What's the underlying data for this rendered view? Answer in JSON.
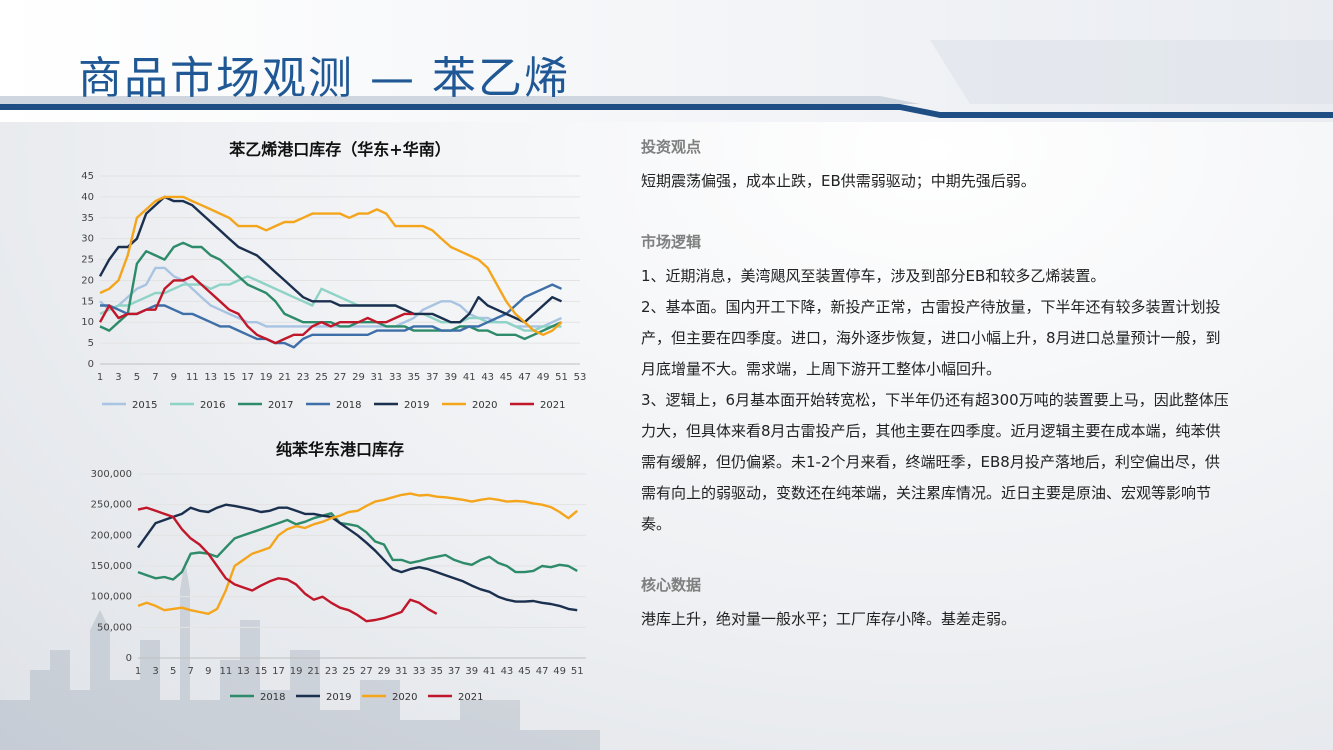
{
  "title": "商品市场观测 — 苯乙烯",
  "right": {
    "investment_heading": "投资观点",
    "investment_text": "短期震荡偏强，成本止跌，EB供需弱驱动；中期先强后弱。",
    "logic_heading": "市场逻辑",
    "logic_p1": "1、近期消息，美湾飓风至装置停车，涉及到部分EB和较多乙烯装置。",
    "logic_p2": "2、基本面。国内开工下降，新投产正常，古雷投产待放量，下半年还有较多装置计划投产，但主要在四季度。进口，海外逐步恢复，进口小幅上升，8月进口总量预计一般，到月底增量不大。需求端，上周下游开工整体小幅回升。",
    "logic_p3": "3、逻辑上，6月基本面开始转宽松，下半年仍还有超300万吨的装置要上马，因此整体压力大，但具体来看8月古雷投产后，其他主要在四季度。近月逻辑主要在成本端，纯苯供需有缓解，但仍偏紧。未1-2个月来看，终端旺季，EB8月投产落地后，利空偏出尽，供需有向上的弱驱动，变数还在纯苯端，关注累库情况。近日主要是原油、宏观等影响节奏。",
    "core_heading": "核心数据",
    "core_text": "港库上升，绝对量一般水平；工厂库存小降。基差走弱。"
  },
  "chart_data": [
    {
      "type": "line",
      "title": "苯乙烯港口库存（华东+华南）",
      "xlabel": "",
      "ylabel": "",
      "ylim": [
        0,
        45
      ],
      "yticks": [
        "0",
        "5",
        "10",
        "15",
        "20",
        "25",
        "30",
        "35",
        "40",
        "45"
      ],
      "xticks": [
        "1",
        "3",
        "5",
        "7",
        "9",
        "11",
        "13",
        "15",
        "17",
        "19",
        "21",
        "23",
        "25",
        "27",
        "29",
        "31",
        "33",
        "35",
        "37",
        "39",
        "41",
        "43",
        "45",
        "47",
        "49",
        "51",
        "53"
      ],
      "grid": true,
      "legend": "bottom",
      "series": [
        {
          "name": "2015",
          "color": "#a9c4e2",
          "values": [
            15,
            13,
            14,
            16,
            18,
            19,
            23,
            23,
            21,
            20,
            18,
            16,
            14,
            13,
            12,
            11,
            10,
            10,
            9,
            9,
            9,
            9,
            9,
            9,
            9,
            9,
            9,
            9,
            9,
            9,
            9,
            9,
            9,
            10,
            11,
            13,
            14,
            15,
            15,
            14,
            12,
            11,
            11,
            10,
            10,
            9,
            9,
            9,
            9,
            10,
            11
          ]
        },
        {
          "name": "2016",
          "color": "#8fd3c7",
          "values": [
            12,
            13,
            14,
            14,
            15,
            16,
            17,
            17,
            18,
            19,
            19,
            19,
            18,
            19,
            19,
            20,
            21,
            20,
            19,
            18,
            17,
            16,
            15,
            14,
            18,
            17,
            16,
            15,
            14,
            14,
            14,
            14,
            14,
            13,
            12,
            12,
            11,
            10,
            10,
            10,
            11,
            11,
            10,
            10,
            10,
            9,
            8,
            8,
            9,
            9,
            9
          ]
        },
        {
          "name": "2017",
          "color": "#2e8b6a",
          "values": [
            9,
            8,
            10,
            12,
            24,
            27,
            26,
            25,
            28,
            29,
            28,
            28,
            26,
            25,
            23,
            21,
            19,
            18,
            17,
            15,
            12,
            11,
            10,
            10,
            10,
            10,
            9,
            9,
            10,
            10,
            10,
            9,
            9,
            9,
            8,
            8,
            8,
            8,
            8,
            9,
            9,
            8,
            8,
            7,
            7,
            7,
            6,
            7,
            8,
            9,
            10
          ]
        },
        {
          "name": "2018",
          "color": "#3f6fa8",
          "values": [
            14,
            14,
            13,
            12,
            12,
            13,
            14,
            14,
            13,
            12,
            12,
            11,
            10,
            9,
            9,
            8,
            7,
            6,
            6,
            5,
            5,
            4,
            6,
            7,
            7,
            7,
            7,
            7,
            7,
            7,
            8,
            8,
            8,
            8,
            9,
            9,
            9,
            8,
            8,
            8,
            9,
            9,
            10,
            11,
            12,
            14,
            16,
            17,
            18,
            19,
            18
          ]
        },
        {
          "name": "2019",
          "color": "#1b2f4f",
          "values": [
            21,
            25,
            28,
            28,
            30,
            36,
            38,
            40,
            39,
            39,
            38,
            36,
            34,
            32,
            30,
            28,
            27,
            26,
            24,
            22,
            20,
            18,
            16,
            15,
            15,
            15,
            14,
            14,
            14,
            14,
            14,
            14,
            14,
            13,
            12,
            12,
            12,
            11,
            10,
            10,
            12,
            16,
            14,
            13,
            12,
            11,
            10,
            12,
            14,
            16,
            15
          ]
        },
        {
          "name": "2020",
          "color": "#f4a51c",
          "values": [
            17,
            18,
            20,
            26,
            35,
            37,
            39,
            40,
            40,
            40,
            39,
            38,
            37,
            36,
            35,
            33,
            33,
            33,
            32,
            33,
            34,
            34,
            35,
            36,
            36,
            36,
            36,
            35,
            36,
            36,
            37,
            36,
            33,
            33,
            33,
            33,
            32,
            30,
            28,
            27,
            26,
            25,
            23,
            19,
            15,
            12,
            10,
            8,
            7,
            8,
            10
          ]
        },
        {
          "name": "2021",
          "color": "#c0172b",
          "values": [
            10,
            14,
            11,
            12,
            12,
            13,
            13,
            18,
            20,
            20,
            21,
            19,
            17,
            15,
            13,
            12,
            9,
            7,
            6,
            5,
            6,
            7,
            7,
            9,
            10,
            9,
            10,
            10,
            10,
            11,
            10,
            10,
            11,
            12,
            12
          ]
        }
      ]
    },
    {
      "type": "line",
      "title": "纯苯华东港口库存",
      "xlabel": "",
      "ylabel": "",
      "ylim": [
        0,
        300000
      ],
      "yticks": [
        "0",
        "50,000",
        "100,000",
        "150,000",
        "200,000",
        "250,000",
        "300,000"
      ],
      "xticks": [
        "1",
        "3",
        "5",
        "7",
        "9",
        "11",
        "13",
        "15",
        "17",
        "19",
        "21",
        "23",
        "25",
        "27",
        "29",
        "31",
        "33",
        "35",
        "37",
        "39",
        "41",
        "43",
        "45",
        "47",
        "49",
        "51"
      ],
      "grid": true,
      "legend": "bottom",
      "series": [
        {
          "name": "2018",
          "color": "#2e8b6a",
          "values": [
            140000,
            135000,
            130000,
            132000,
            128000,
            140000,
            170000,
            172000,
            170000,
            165000,
            180000,
            195000,
            200000,
            205000,
            210000,
            215000,
            220000,
            225000,
            218000,
            222000,
            228000,
            232000,
            236000,
            220000,
            218000,
            215000,
            205000,
            190000,
            185000,
            160000,
            160000,
            155000,
            158000,
            162000,
            165000,
            168000,
            160000,
            155000,
            152000,
            160000,
            165000,
            155000,
            150000,
            140000,
            140000,
            142000,
            150000,
            148000,
            152000,
            150000,
            142000
          ]
        },
        {
          "name": "2019",
          "color": "#1b2f4f",
          "values": [
            180000,
            200000,
            220000,
            225000,
            230000,
            235000,
            245000,
            240000,
            238000,
            245000,
            250000,
            248000,
            245000,
            242000,
            238000,
            240000,
            245000,
            245000,
            240000,
            235000,
            235000,
            232000,
            230000,
            220000,
            210000,
            200000,
            188000,
            175000,
            160000,
            145000,
            140000,
            145000,
            148000,
            145000,
            140000,
            135000,
            130000,
            125000,
            118000,
            112000,
            108000,
            100000,
            95000,
            92000,
            92000,
            93000,
            90000,
            88000,
            85000,
            80000,
            78000
          ]
        },
        {
          "name": "2020",
          "color": "#f4a51c",
          "values": [
            85000,
            90000,
            85000,
            78000,
            80000,
            82000,
            78000,
            75000,
            72000,
            80000,
            110000,
            150000,
            160000,
            170000,
            175000,
            180000,
            200000,
            210000,
            215000,
            212000,
            218000,
            222000,
            228000,
            232000,
            238000,
            240000,
            248000,
            255000,
            258000,
            262000,
            266000,
            268000,
            265000,
            266000,
            263000,
            262000,
            260000,
            258000,
            255000,
            258000,
            260000,
            258000,
            255000,
            256000,
            255000,
            252000,
            250000,
            246000,
            238000,
            228000,
            240000
          ]
        },
        {
          "name": "2021",
          "color": "#c0172b",
          "values": [
            242000,
            245000,
            240000,
            235000,
            230000,
            210000,
            195000,
            185000,
            170000,
            150000,
            130000,
            120000,
            115000,
            110000,
            118000,
            125000,
            130000,
            128000,
            120000,
            105000,
            95000,
            100000,
            90000,
            82000,
            78000,
            70000,
            60000,
            62000,
            65000,
            70000,
            75000,
            95000,
            90000,
            80000,
            72000
          ]
        }
      ]
    }
  ]
}
